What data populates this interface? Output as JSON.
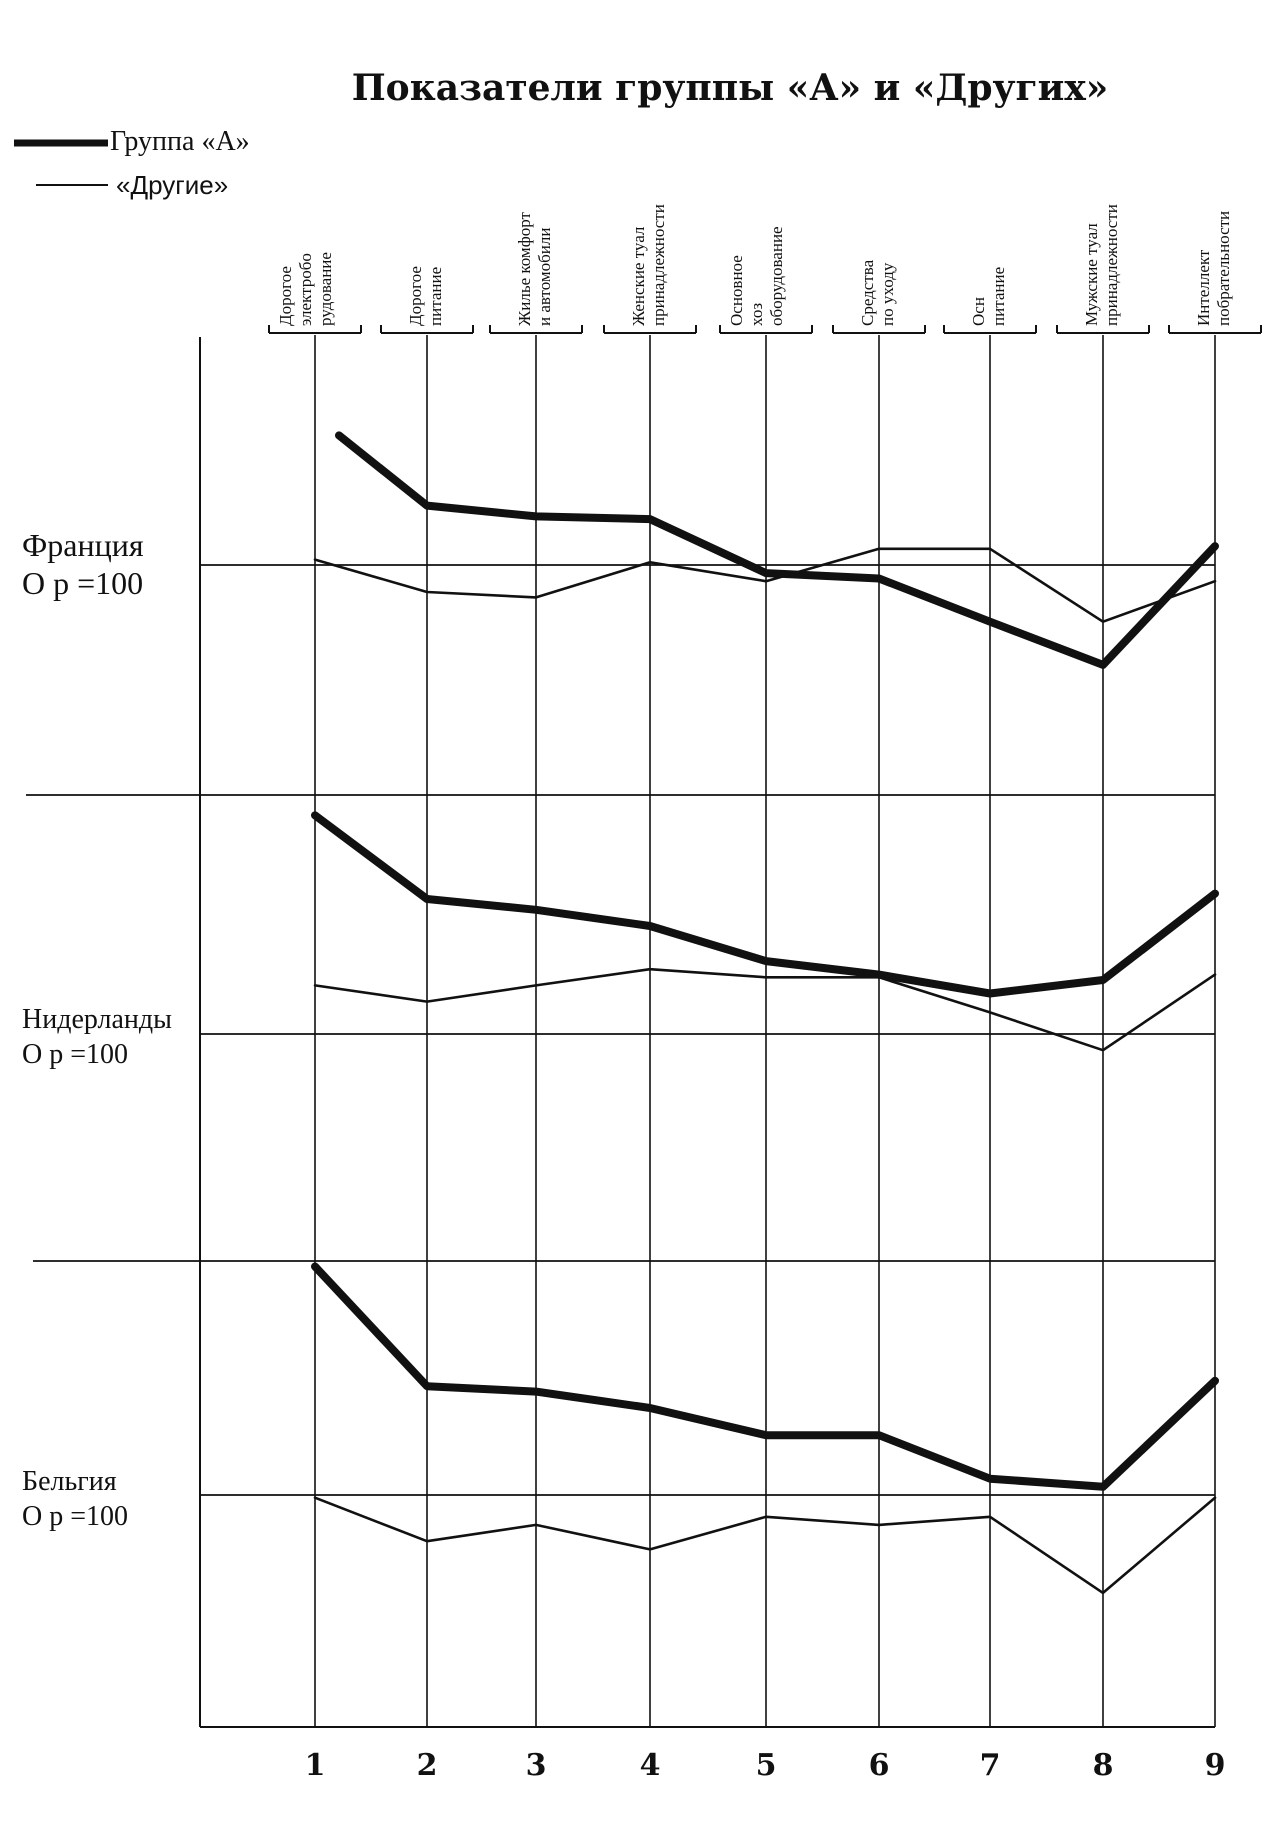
{
  "chart_data": {
    "type": "line",
    "title": "Показатели группы «А» и «Других»",
    "legend": {
      "group_a": "Группа «А»",
      "others": "«Другие»"
    },
    "x": [
      "1",
      "2",
      "3",
      "4",
      "5",
      "6",
      "7",
      "8",
      "9"
    ],
    "categories": [
      [
        "Дорогое",
        "электробо",
        "рудование"
      ],
      [
        "Дорогое",
        "питание"
      ],
      [
        "Жилье комфорт",
        "и автомобили"
      ],
      [
        "Женские туал",
        "принадлежности"
      ],
      [
        "Основное",
        "хоз",
        "оборудование"
      ],
      [
        "Средства",
        "по уходу"
      ],
      [
        "Осн",
        "питание"
      ],
      [
        "Мужские туал",
        "принадлежности"
      ],
      [
        "Интеллект",
        "побрательности"
      ]
    ],
    "panels": [
      {
        "name_line1": "Франция",
        "name_line2": "О  р =100",
        "series": [
          {
            "name": "Группа «А»",
            "values": [
              148,
              122,
              118,
              117,
              97,
              95,
              79,
              63,
              107
            ]
          },
          {
            "name": "«Другие»",
            "values": [
              102,
              90,
              88,
              101,
              94,
              106,
              106,
              79,
              94
            ]
          }
        ]
      },
      {
        "name_line1": "Нидерланды",
        "name_line2": "О  р =100",
        "series": [
          {
            "name": "Группа «А»",
            "values": [
              181,
              150,
              146,
              140,
              127,
              122,
              115,
              120,
              152
            ]
          },
          {
            "name": "«Другие»",
            "values": [
              118,
              112,
              118,
              124,
              121,
              121,
              108,
              94,
              122
            ]
          }
        ]
      },
      {
        "name_line1": "Бельгия",
        "name_line2": "О  р =100",
        "series": [
          {
            "name": "Группа «А»",
            "values": [
              184,
              140,
              138,
              132,
              122,
              122,
              106,
              103,
              142
            ]
          },
          {
            "name": "«Другие»",
            "values": [
              99,
              83,
              89,
              80,
              92,
              89,
              92,
              64,
              99
            ]
          }
        ]
      }
    ]
  }
}
